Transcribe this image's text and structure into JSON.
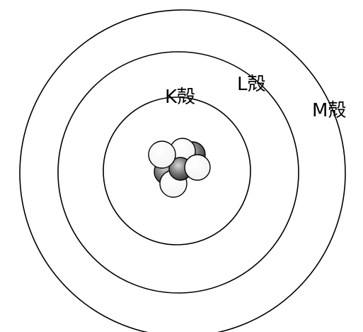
{
  "shells": [
    {
      "id": "K",
      "label": "K殻"
    },
    {
      "id": "L",
      "label": "L殻"
    },
    {
      "id": "M",
      "label": "M殻"
    }
  ],
  "nucleus": {
    "proton_color": "#6e6e6e",
    "neutron_color": "#ffffff"
  },
  "colors": {
    "line": "#000000",
    "background": "#ffffff"
  }
}
